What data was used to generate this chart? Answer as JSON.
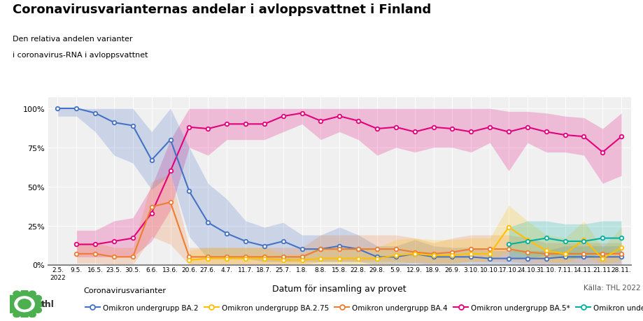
{
  "title": "Coronavirusvarianternas andelar i avloppsvattnet i Finland",
  "subtitle_line1": "Den relativa andelen varianter",
  "subtitle_line2": "i coronavirus-RNA i avloppsvattnet",
  "xlabel": "Datum för insamling av provet",
  "source": "Källa: THL 2022",
  "legend_title": "Coronavirusvarianter",
  "background_color": "#ffffff",
  "plot_bg_color": "#f0f0f0",
  "x_labels": [
    "2.5.\n2022",
    "9.5.",
    "16.5.",
    "23.5.",
    "30.5.",
    "6.6.",
    "13.6.",
    "20.6.",
    "27.6.",
    "4.7.",
    "11.7.",
    "18.7.",
    "25.7.",
    "1.8.",
    "8.8.",
    "15.8.",
    "22.8.",
    "29.8.",
    "5.9.",
    "12.9.",
    "18.9.",
    "26.9.",
    "3.10.",
    "10.10.",
    "17.10.",
    "24.10.",
    "31.10.",
    "7.11.",
    "14.11.",
    "21.11.",
    "28.11."
  ],
  "series": {
    "BA2": {
      "label": "Omikron undergrupp BA.2",
      "color": "#4472c4",
      "values": [
        100,
        100,
        97,
        91,
        89,
        67,
        80,
        47,
        27,
        20,
        15,
        12,
        15,
        10,
        10,
        12,
        10,
        5,
        5,
        7,
        5,
        5,
        5,
        4,
        4,
        4,
        4,
        5,
        5,
        5,
        5
      ],
      "lower": [
        95,
        95,
        85,
        70,
        65,
        48,
        58,
        18,
        4,
        4,
        4,
        2,
        2,
        2,
        2,
        2,
        2,
        0,
        0,
        1,
        0,
        0,
        0,
        0,
        0,
        0,
        0,
        0,
        0,
        0,
        0
      ],
      "upper": [
        100,
        100,
        100,
        100,
        100,
        85,
        100,
        75,
        52,
        42,
        28,
        24,
        27,
        19,
        19,
        24,
        19,
        12,
        12,
        16,
        12,
        11,
        11,
        9,
        9,
        9,
        9,
        12,
        12,
        12,
        12
      ]
    },
    "BA275": {
      "label": "Omikron undergrupp BA.2.75",
      "color": "#ffc000",
      "values": [
        null,
        null,
        null,
        null,
        null,
        null,
        null,
        3,
        4,
        4,
        4,
        4,
        3,
        3,
        4,
        4,
        4,
        4,
        6,
        7,
        6,
        6,
        7,
        7,
        24,
        16,
        9,
        7,
        16,
        4,
        11
      ],
      "lower": [
        null,
        null,
        null,
        null,
        null,
        null,
        null,
        0,
        0,
        0,
        0,
        0,
        0,
        0,
        0,
        0,
        0,
        0,
        1,
        2,
        1,
        1,
        2,
        2,
        9,
        6,
        2,
        1,
        6,
        0,
        3
      ],
      "upper": [
        null,
        null,
        null,
        null,
        null,
        null,
        null,
        9,
        11,
        11,
        11,
        11,
        7,
        7,
        11,
        11,
        11,
        11,
        16,
        17,
        16,
        16,
        17,
        17,
        38,
        28,
        19,
        17,
        28,
        11,
        24
      ]
    },
    "BA4": {
      "label": "Omikron undergrupp BA.4",
      "color": "#ed7d31",
      "values": [
        null,
        7,
        7,
        5,
        5,
        37,
        40,
        5,
        5,
        5,
        5,
        5,
        5,
        5,
        10,
        10,
        10,
        10,
        10,
        8,
        7,
        8,
        10,
        10,
        10,
        8,
        7,
        7,
        7,
        7,
        7
      ],
      "lower": [
        null,
        1,
        1,
        0,
        0,
        18,
        13,
        0,
        0,
        0,
        0,
        0,
        0,
        0,
        2,
        2,
        2,
        2,
        2,
        1,
        1,
        1,
        2,
        2,
        2,
        1,
        1,
        1,
        1,
        1,
        1
      ],
      "upper": [
        null,
        14,
        14,
        11,
        11,
        53,
        58,
        11,
        11,
        11,
        11,
        11,
        11,
        11,
        19,
        19,
        19,
        19,
        19,
        17,
        14,
        17,
        19,
        19,
        19,
        17,
        14,
        14,
        14,
        14,
        14
      ]
    },
    "BA5": {
      "label": "Omikron undergrupp BA.5*",
      "color": "#e3007d",
      "values": [
        null,
        13,
        13,
        15,
        17,
        33,
        60,
        88,
        87,
        90,
        90,
        90,
        95,
        97,
        92,
        95,
        92,
        87,
        88,
        85,
        88,
        87,
        85,
        88,
        85,
        88,
        85,
        83,
        82,
        72,
        82
      ],
      "lower": [
        null,
        5,
        5,
        5,
        5,
        15,
        35,
        75,
        70,
        80,
        80,
        80,
        85,
        90,
        80,
        85,
        80,
        70,
        75,
        72,
        75,
        75,
        72,
        78,
        60,
        78,
        72,
        72,
        70,
        52,
        57
      ],
      "upper": [
        null,
        22,
        22,
        28,
        30,
        50,
        80,
        100,
        100,
        100,
        100,
        100,
        100,
        100,
        100,
        100,
        100,
        100,
        100,
        100,
        100,
        100,
        100,
        100,
        98,
        98,
        97,
        95,
        94,
        87,
        97
      ]
    },
    "XBB": {
      "label": "Omikron undergrupp XBB",
      "color": "#00b0a0",
      "values": [
        null,
        null,
        null,
        null,
        null,
        null,
        null,
        null,
        null,
        null,
        null,
        null,
        null,
        null,
        null,
        null,
        null,
        null,
        null,
        null,
        null,
        null,
        null,
        null,
        13,
        15,
        17,
        15,
        15,
        17,
        17
      ],
      "lower": [
        null,
        null,
        null,
        null,
        null,
        null,
        null,
        null,
        null,
        null,
        null,
        null,
        null,
        null,
        null,
        null,
        null,
        null,
        null,
        null,
        null,
        null,
        null,
        null,
        4,
        4,
        6,
        4,
        4,
        7,
        7
      ],
      "upper": [
        null,
        null,
        null,
        null,
        null,
        null,
        null,
        null,
        null,
        null,
        null,
        null,
        null,
        null,
        null,
        null,
        null,
        null,
        null,
        null,
        null,
        null,
        null,
        null,
        24,
        28,
        28,
        26,
        26,
        28,
        28
      ]
    }
  }
}
